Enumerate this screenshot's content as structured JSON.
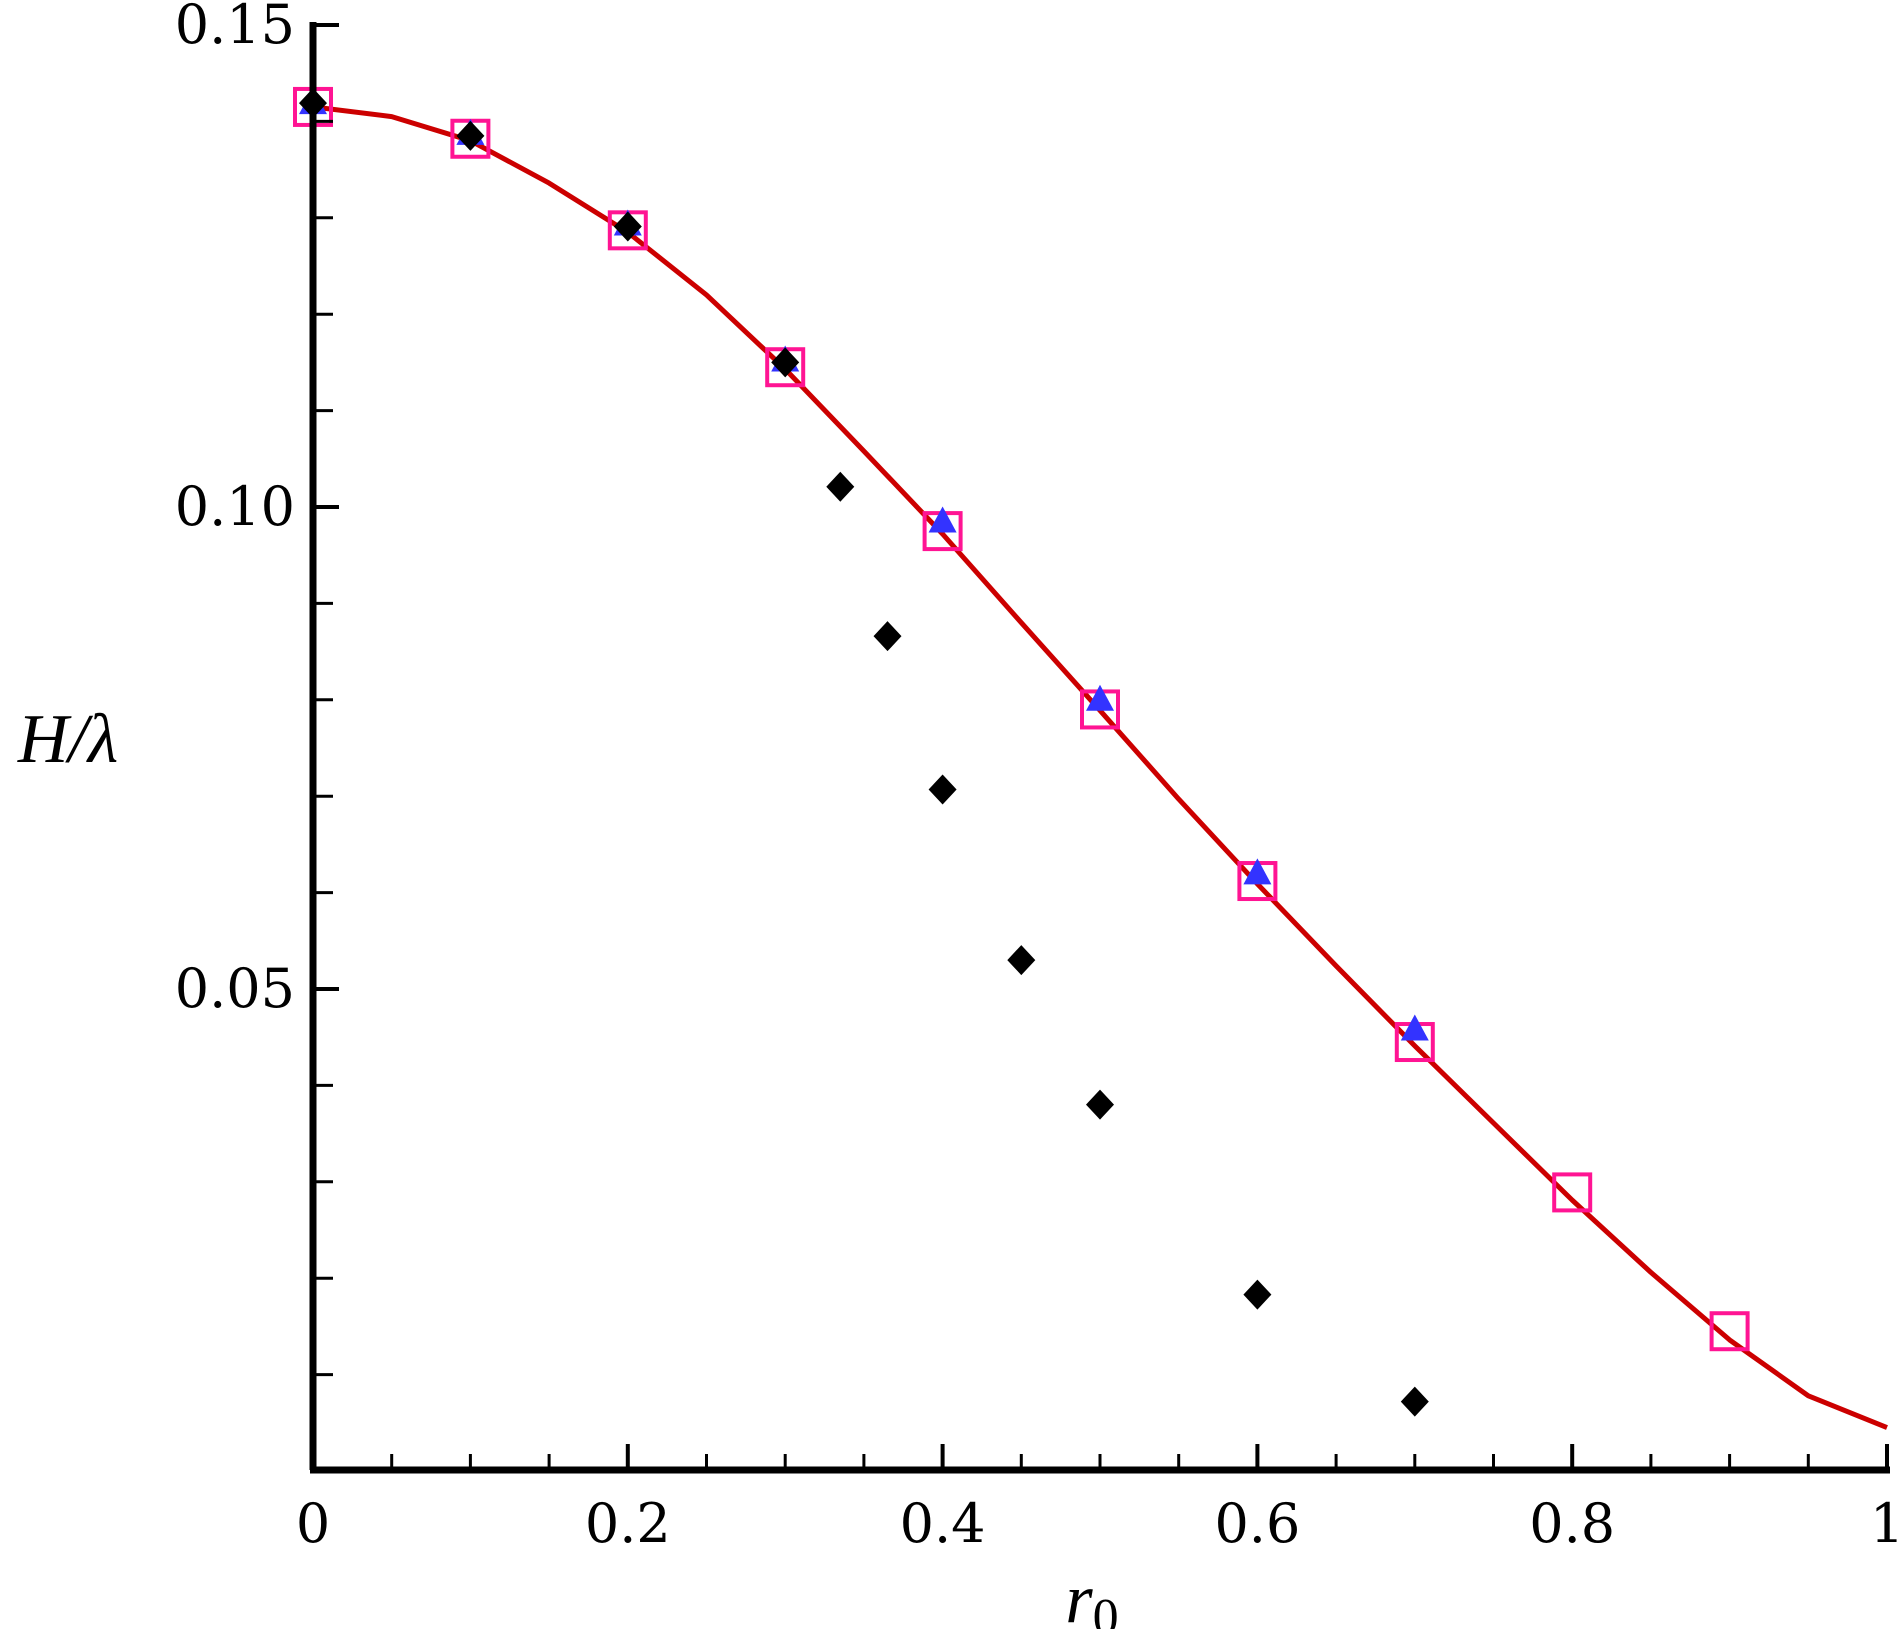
{
  "chart_data": {
    "type": "scatter",
    "xlabel": "r",
    "xlabel_sub": "0",
    "ylabel": "H/λ",
    "xlim": [
      0,
      1
    ],
    "ylim": [
      0.0045,
      0.15
    ],
    "x_ticks_major": [
      0,
      0.2,
      0.4,
      0.6,
      0.8,
      1
    ],
    "x_tick_labels": [
      "0",
      "0.2",
      "0.4",
      "0.6",
      "0.8",
      "1"
    ],
    "x_ticks_minor": [
      0.05,
      0.1,
      0.15,
      0.25,
      0.3,
      0.35,
      0.45,
      0.5,
      0.55,
      0.65,
      0.7,
      0.75,
      0.85,
      0.9,
      0.95
    ],
    "y_ticks_major": [
      0.05,
      0.1,
      0.15
    ],
    "y_tick_labels": [
      "0.05",
      "0.10",
      "0.15"
    ],
    "y_ticks_minor": [
      0.01,
      0.02,
      0.03,
      0.04,
      0.06,
      0.07,
      0.08,
      0.09,
      0.11,
      0.12,
      0.13,
      0.14
    ],
    "grid": false,
    "series": [
      {
        "kind": "line",
        "color": "#cc0000",
        "x": [
          0,
          0.05,
          0.1,
          0.15,
          0.2,
          0.25,
          0.3,
          0.35,
          0.4,
          0.45,
          0.5,
          0.55,
          0.6,
          0.65,
          0.7,
          0.75,
          0.8,
          0.85,
          0.9,
          0.95,
          1.0
        ],
        "y": [
          0.1415,
          0.1405,
          0.138,
          0.1336,
          0.1285,
          0.122,
          0.1143,
          0.1058,
          0.0972,
          0.088,
          0.0789,
          0.0697,
          0.0609,
          0.0524,
          0.0441,
          0.0361,
          0.0281,
          0.0206,
          0.0136,
          0.0078,
          0.0045
        ]
      },
      {
        "kind": "marker",
        "marker": "square-open",
        "color": "#ff1493",
        "x": [
          0,
          0.1,
          0.2,
          0.3,
          0.4,
          0.5,
          0.6,
          0.7,
          0.8,
          0.9
        ],
        "y": [
          0.1415,
          0.1382,
          0.1287,
          0.1145,
          0.0975,
          0.079,
          0.0612,
          0.0445,
          0.0289,
          0.0145
        ]
      },
      {
        "kind": "marker",
        "marker": "triangle-filled",
        "color": "#3333ff",
        "x": [
          0,
          0.1,
          0.2,
          0.3,
          0.4,
          0.5,
          0.6,
          0.7
        ],
        "y": [
          0.1419,
          0.1387,
          0.1293,
          0.1152,
          0.0985,
          0.08,
          0.062,
          0.0458
        ]
      },
      {
        "kind": "marker",
        "marker": "diamond-filled",
        "color": "#000000",
        "x": [
          0,
          0.1,
          0.2,
          0.3,
          0.335,
          0.365,
          0.4,
          0.45,
          0.5,
          0.6,
          0.7
        ],
        "y": [
          0.1419,
          0.1385,
          0.1291,
          0.115,
          0.1021,
          0.0866,
          0.0707,
          0.053,
          0.038,
          0.0183,
          0.0072
        ]
      }
    ]
  }
}
